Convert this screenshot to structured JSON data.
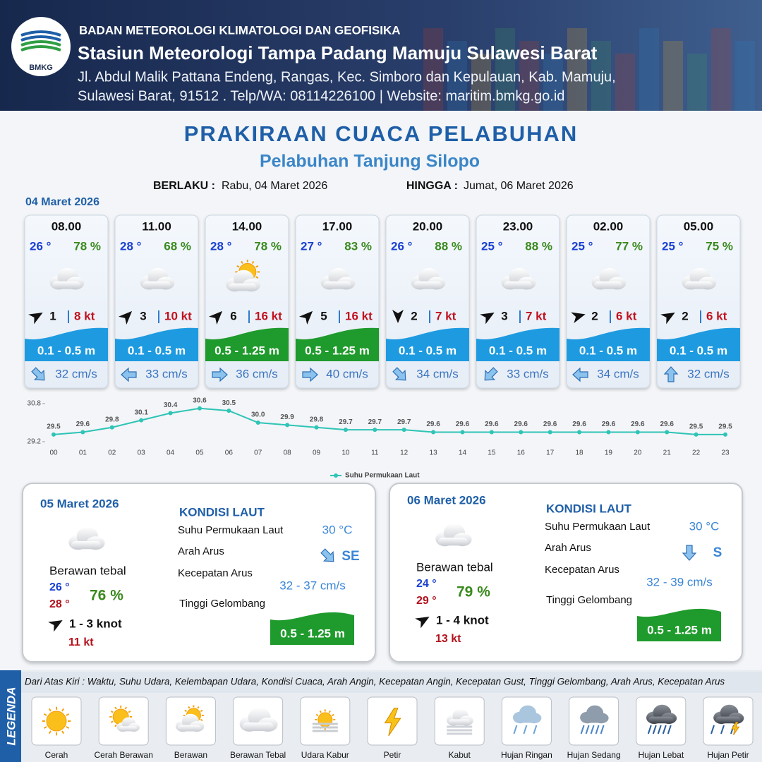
{
  "header": {
    "logo": "BMKG",
    "organization": "BADAN METEOROLOGI KLIMATOLOGI DAN GEOFISIKA",
    "station": "Stasiun Meteorologi Tampa Padang Mamuju Sulawesi Barat",
    "address_line_1": "Jl. Abdul Malik Pattana Endeng, Rangas, Kec. Simboro dan Kepulauan, Kab. Mamuju,",
    "address_line_2": "Sulawesi Barat, 91512 . Telp/WA: 08114226100 | Website: maritim.bmkg.go.id"
  },
  "title": "PRAKIRAAN CUACA PELABUHAN",
  "subtitle": "Pelabuhan Tanjung Silopo",
  "validity": {
    "from_label": "BERLAKU :",
    "from": "Rabu, 04 Maret 2026",
    "to_label": "HINGGA :",
    "to": "Jumat, 06 Maret 2026"
  },
  "day_1": {
    "date": "04 Maret 2026",
    "cards": [
      {
        "time": "08.00",
        "temperature": "26 °",
        "humidity": "78 %",
        "wind": "1",
        "gust": "8 kt",
        "wave": "0.1 - 0.5 m",
        "wave_color": "#1e9be0",
        "current": "32 cm/s"
      },
      {
        "time": "11.00",
        "temperature": "28 °",
        "humidity": "68 %",
        "wind": "3",
        "gust": "10 kt",
        "wave": "0.1 - 0.5 m",
        "wave_color": "#1e9be0",
        "current": "33 cm/s"
      },
      {
        "time": "14.00",
        "temperature": "28 °",
        "humidity": "78 %",
        "wind": "6",
        "gust": "16 kt",
        "wave": "0.5 - 1.25 m",
        "wave_color": "#1f9a2c",
        "current": "36 cm/s"
      },
      {
        "time": "17.00",
        "temperature": "27 °",
        "humidity": "83 %",
        "wind": "5",
        "gust": "16 kt",
        "wave": "0.5 - 1.25 m",
        "wave_color": "#1f9a2c",
        "current": "40 cm/s"
      },
      {
        "time": "20.00",
        "temperature": "26 °",
        "humidity": "88 %",
        "wind": "2",
        "gust": "7 kt",
        "wave": "0.1 - 0.5 m",
        "wave_color": "#1e9be0",
        "current": "34 cm/s"
      },
      {
        "time": "23.00",
        "temperature": "25 °",
        "humidity": "88 %",
        "wind": "3",
        "gust": "7 kt",
        "wave": "0.1 - 0.5 m",
        "wave_color": "#1e9be0",
        "current": "33 cm/s"
      },
      {
        "time": "02.00",
        "temperature": "25 °",
        "humidity": "77 %",
        "wind": "2",
        "gust": "6 kt",
        "wave": "0.1 - 0.5 m",
        "wave_color": "#1e9be0",
        "current": "34 cm/s"
      },
      {
        "time": "05.00",
        "temperature": "25 °",
        "humidity": "75 %",
        "wind": "2",
        "gust": "6 kt",
        "wave": "0.1 - 0.5 m",
        "wave_color": "#1e9be0",
        "current": "32 cm/s"
      }
    ]
  },
  "chart_data": {
    "type": "line",
    "categories": [
      "00",
      "01",
      "02",
      "03",
      "04",
      "05",
      "06",
      "07",
      "08",
      "09",
      "10",
      "11",
      "12",
      "13",
      "14",
      "15",
      "16",
      "17",
      "18",
      "19",
      "20",
      "21",
      "22",
      "23"
    ],
    "series": [
      {
        "name": "Suhu Permukaan Laut",
        "color": "#2ec4b6",
        "values": [
          29.5,
          29.6,
          29.8,
          30.1,
          30.4,
          30.6,
          30.5,
          30.0,
          29.9,
          29.8,
          29.7,
          29.7,
          29.7,
          29.6,
          29.6,
          29.6,
          29.6,
          29.6,
          29.6,
          29.6,
          29.6,
          29.6,
          29.5,
          29.5
        ],
        "value_labels": [
          "29.5",
          "29.6",
          "29.8",
          "30.1",
          "30.4",
          "30.6",
          "30.5",
          "30.0",
          "29.9",
          "29.8",
          "29.7",
          "29.7",
          "29.7",
          "29.6",
          "29.6",
          "29.6",
          "29.6",
          "29.6",
          "29.6",
          "29.6",
          "29.6",
          "29.6",
          "29.5",
          "29.5"
        ]
      }
    ],
    "ylim": [
      29.2,
      30.8
    ],
    "yticks": [
      29.2,
      30.8
    ],
    "legend": "bottom"
  },
  "outlook": [
    {
      "date": "05 Maret 2026",
      "condition": "Berawan tebal",
      "temperature_min": "26 °",
      "temperature_max": "28 °",
      "humidity": "76 %",
      "wind": "1 - 3 knot",
      "gust": "11 kt",
      "sea_title": "KONDISI LAUT",
      "sst_label": "Suhu Permukaan Laut",
      "sst": "30 °C",
      "current_dir_label": "Arah Arus",
      "current_dir": "SE",
      "current_speed_label": "Kecepatan Arus",
      "current_speed": "32  - 37 cm/s",
      "wave_label": "Tinggi Gelombang",
      "wave": "0.5 - 1.25 m"
    },
    {
      "date": "06 Maret 2026",
      "condition": "Berawan tebal",
      "temperature_min": "24 °",
      "temperature_max": "29 °",
      "humidity": "79 %",
      "wind": "1 - 4 knot",
      "gust": "13 kt",
      "sea_title": "KONDISI LAUT",
      "sst_label": "Suhu Permukaan Laut",
      "sst": "30 °C",
      "current_dir_label": "Arah Arus",
      "current_dir": "S",
      "current_speed_label": "Kecepatan Arus",
      "current_speed": "32  - 39 cm/s",
      "wave_label": "Tinggi Gelombang",
      "wave": "0.5 - 1.25 m"
    }
  ],
  "legend": {
    "title": "LEGENDA",
    "description": "Dari Atas Kiri : Waktu, Suhu Udara, Kelembapan Udara, Kondisi Cuaca, Arah Angin, Kecepatan Angin, Kecepatan Gust, Tinggi Gelombang, Arah Arus, Kecepatan Arus",
    "items": [
      "Cerah",
      "Cerah Berawan",
      "Berawan",
      "Berawan Tebal",
      "Udara Kabur",
      "Petir",
      "Kabut",
      "Hujan Ringan",
      "Hujan Sedang",
      "Hujan Lebat",
      "Hujan Petir"
    ]
  }
}
